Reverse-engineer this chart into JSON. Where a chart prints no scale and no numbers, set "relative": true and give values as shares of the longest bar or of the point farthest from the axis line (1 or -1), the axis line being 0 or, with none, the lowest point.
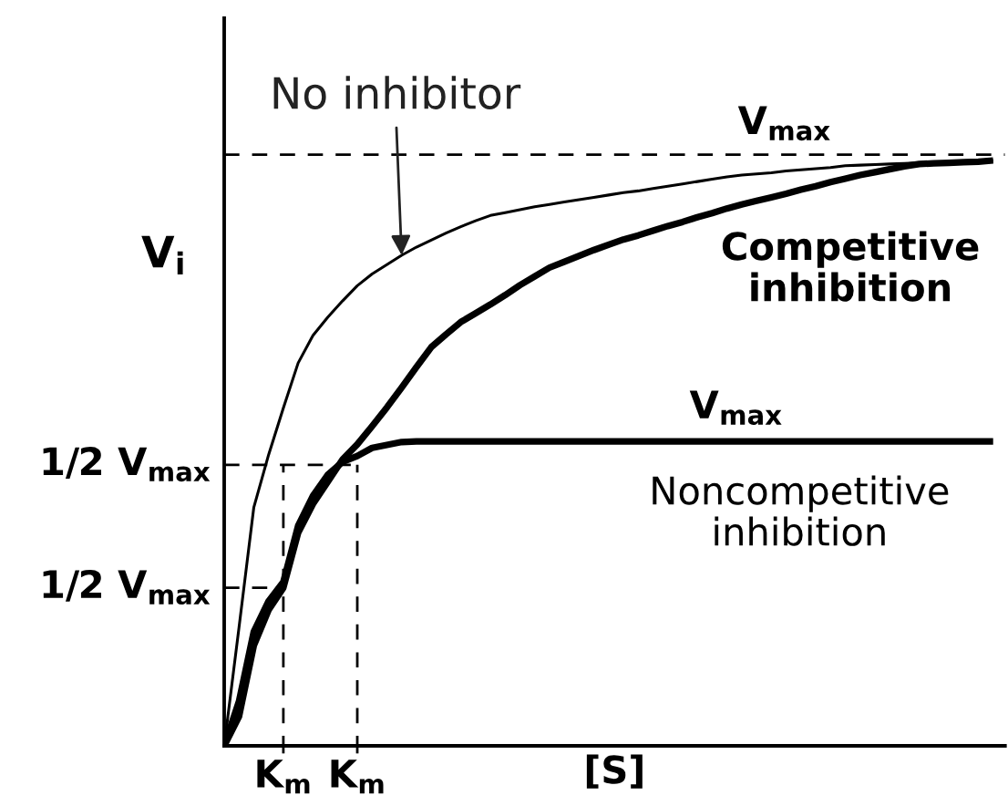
{
  "chart_data": {
    "type": "line",
    "relative": true,
    "xlabel": "[S]",
    "ylabel": "V$_{i}$",
    "categories": [
      null,
      null,
      null,
      null,
      "K$_{m}$",
      null,
      null,
      null,
      null,
      "K$_{m}$",
      null,
      null,
      null,
      null,
      null,
      null,
      null,
      null,
      null,
      null,
      null,
      null,
      null,
      null,
      null,
      null,
      null,
      null,
      null,
      null,
      null,
      null,
      null,
      null,
      null,
      null,
      null,
      null,
      null,
      null,
      null,
      null,
      null,
      null,
      null,
      null,
      null,
      null,
      null,
      null,
      null,
      null,
      null
    ],
    "series": [
      {
        "name": "No inhibitor",
        "color": "#000000",
        "values": [
          0,
          0.202,
          0.407,
          0.497,
          0.577,
          0.654,
          0.701,
          0.732,
          0.76,
          0.786,
          0.806,
          0.822,
          0.838,
          0.852,
          0.864,
          0.876,
          0.887,
          0.897,
          0.906,
          0.911,
          0.916,
          0.921,
          0.925,
          0.929,
          0.933,
          0.937,
          0.941,
          0.945,
          0.948,
          0.952,
          0.956,
          0.96,
          0.964,
          0.968,
          0.972,
          0.975,
          0.977,
          0.979,
          0.982,
          0.984,
          0.986,
          0.988,
          0.991,
          0.992,
          0.993,
          0.994,
          0.995,
          0.996,
          0.997,
          0.997,
          0.998,
          0.999,
          1.0
        ]
      },
      {
        "name": "Competitive\ninhibition",
        "color": "#000000",
        "values": [
          0,
          0.05,
          0.171,
          0.232,
          0.27,
          0.364,
          0.413,
          0.451,
          0.489,
          0.515,
          0.546,
          0.578,
          0.612,
          0.647,
          0.681,
          0.703,
          0.724,
          0.739,
          0.754,
          0.77,
          0.787,
          0.802,
          0.817,
          0.827,
          0.837,
          0.847,
          0.856,
          0.865,
          0.872,
          0.88,
          0.888,
          0.895,
          0.903,
          0.91,
          0.918,
          0.925,
          0.931,
          0.937,
          0.943,
          0.95,
          0.956,
          0.963,
          0.969,
          0.975,
          0.98,
          0.985,
          0.99,
          0.994,
          0.995,
          0.996,
          0.997,
          0.998,
          1.0
        ]
      },
      {
        "name": "Noncompetitive\ninhibition",
        "color": "#000000",
        "values": [
          0,
          0.076,
          0.195,
          0.247,
          0.28,
          0.376,
          0.427,
          0.463,
          0.485,
          0.495,
          0.509,
          0.514,
          0.519,
          0.52,
          0.52,
          0.52,
          0.52,
          0.52,
          0.52,
          0.52,
          0.52,
          0.52,
          0.52,
          0.52,
          0.52,
          0.52,
          0.52,
          0.52,
          0.52,
          0.52,
          0.52,
          0.52,
          0.52,
          0.52,
          0.52,
          0.52,
          0.52,
          0.52,
          0.52,
          0.52,
          0.52,
          0.52,
          0.52,
          0.52,
          0.52,
          0.52,
          0.52,
          0.52,
          0.52,
          0.52,
          0.52,
          0.52,
          0.52
        ]
      },
      {
        "name": "1/2 V$_{max}$",
        "color": "#000000",
        "line_style": "dashed",
        "values": [
          0.48,
          0.48,
          0.48,
          0.48,
          0.48,
          0.48,
          0.48,
          0.48,
          0.48,
          0.48,
          null,
          null,
          null,
          null,
          null,
          null,
          null,
          null,
          null,
          null,
          null,
          null,
          null,
          null,
          null,
          null,
          null,
          null,
          null,
          null,
          null,
          null,
          null,
          null,
          null,
          null,
          null,
          null,
          null,
          null,
          null,
          null,
          null,
          null,
          null,
          null,
          null,
          null,
          null,
          null,
          null,
          null,
          null
        ]
      },
      {
        "type": "bar",
        "color": "#000000",
        "line_style": "dashed",
        "values": [
          null,
          null,
          null,
          null,
          0.48,
          null,
          null,
          null,
          null,
          0.48,
          null,
          null,
          null,
          null,
          null,
          null,
          null,
          null,
          null,
          null,
          null,
          null,
          null,
          null,
          null,
          null,
          null,
          null,
          null,
          null,
          null,
          null,
          null,
          null,
          null,
          null,
          null,
          null,
          null,
          null,
          null,
          null,
          null,
          null,
          null,
          null,
          null,
          null,
          null,
          null,
          null,
          null,
          null
        ]
      },
      {
        "name": "1/2 V$_{max}$",
        "color": "#000000",
        "line_style": "dashed",
        "values": [
          0.27,
          0.27,
          0.27,
          0.27,
          0.27,
          null,
          null,
          null,
          null,
          null,
          null,
          null,
          null,
          null,
          null,
          null,
          null,
          null,
          null,
          null,
          null,
          null,
          null,
          null,
          null,
          null,
          null,
          null,
          null,
          null,
          null,
          null,
          null,
          null,
          null,
          null,
          null,
          null,
          null,
          null,
          null,
          null,
          null,
          null,
          null,
          null,
          null,
          null,
          null,
          null,
          null,
          null,
          null
        ]
      }
    ],
    "ref_lines": [
      {
        "axis": "y",
        "value": 1.01,
        "label": "V$_{max}$",
        "line_style": "dashed",
        "color": "#000000"
      }
    ],
    "annotations": [
      {
        "text": "V$_{max}$",
        "y": 0.52
      }
    ]
  }
}
